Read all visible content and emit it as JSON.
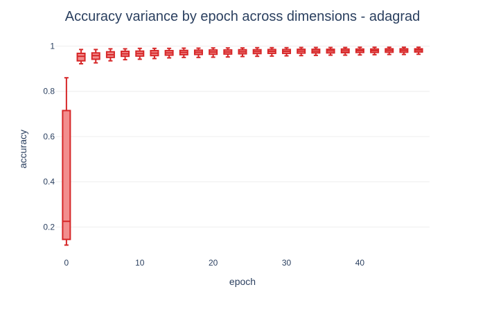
{
  "chart_data": {
    "type": "box",
    "title": "Accuracy variance by epoch across dimensions - adagrad",
    "xlabel": "epoch",
    "ylabel": "accuracy",
    "xlim": [
      -1.5,
      49.5
    ],
    "ylim": [
      0.1,
      1.02
    ],
    "x_ticks": [
      0,
      10,
      20,
      30,
      40
    ],
    "y_ticks": [
      0.2,
      0.4,
      0.6,
      0.8,
      1
    ],
    "y_tick_labels": [
      "0.2",
      "0.4",
      "0.6",
      "0.8",
      "1"
    ],
    "grid": true,
    "legend": "none",
    "colors": {
      "box_fill": "#f28e8e",
      "box_line": "#d62728",
      "text": "#2a3f5f",
      "grid": "#eeeeee"
    },
    "boxes": [
      {
        "x": 0,
        "min": 0.12,
        "q1": 0.145,
        "median": 0.225,
        "q3": 0.715,
        "max": 0.86
      },
      {
        "x": 2,
        "min": 0.922,
        "q1": 0.935,
        "median": 0.955,
        "q3": 0.968,
        "max": 0.985
      },
      {
        "x": 4,
        "min": 0.926,
        "q1": 0.942,
        "median": 0.958,
        "q3": 0.97,
        "max": 0.985
      },
      {
        "x": 6,
        "min": 0.935,
        "q1": 0.95,
        "median": 0.962,
        "q3": 0.975,
        "max": 0.988
      },
      {
        "x": 8,
        "min": 0.94,
        "q1": 0.955,
        "median": 0.966,
        "q3": 0.977,
        "max": 0.988
      },
      {
        "x": 10,
        "min": 0.942,
        "q1": 0.956,
        "median": 0.967,
        "q3": 0.978,
        "max": 0.99
      },
      {
        "x": 12,
        "min": 0.945,
        "q1": 0.958,
        "median": 0.969,
        "q3": 0.98,
        "max": 0.99
      },
      {
        "x": 14,
        "min": 0.948,
        "q1": 0.96,
        "median": 0.97,
        "q3": 0.98,
        "max": 0.99
      },
      {
        "x": 16,
        "min": 0.95,
        "q1": 0.962,
        "median": 0.972,
        "q3": 0.981,
        "max": 0.991
      },
      {
        "x": 18,
        "min": 0.95,
        "q1": 0.963,
        "median": 0.973,
        "q3": 0.982,
        "max": 0.991
      },
      {
        "x": 20,
        "min": 0.951,
        "q1": 0.964,
        "median": 0.974,
        "q3": 0.983,
        "max": 0.992
      },
      {
        "x": 22,
        "min": 0.952,
        "q1": 0.965,
        "median": 0.974,
        "q3": 0.983,
        "max": 0.992
      },
      {
        "x": 24,
        "min": 0.954,
        "q1": 0.966,
        "median": 0.975,
        "q3": 0.984,
        "max": 0.992
      },
      {
        "x": 26,
        "min": 0.955,
        "q1": 0.967,
        "median": 0.976,
        "q3": 0.984,
        "max": 0.993
      },
      {
        "x": 28,
        "min": 0.956,
        "q1": 0.968,
        "median": 0.977,
        "q3": 0.985,
        "max": 0.993
      },
      {
        "x": 30,
        "min": 0.957,
        "q1": 0.968,
        "median": 0.977,
        "q3": 0.985,
        "max": 0.993
      },
      {
        "x": 32,
        "min": 0.958,
        "q1": 0.969,
        "median": 0.978,
        "q3": 0.986,
        "max": 0.994
      },
      {
        "x": 34,
        "min": 0.959,
        "q1": 0.97,
        "median": 0.978,
        "q3": 0.986,
        "max": 0.994
      },
      {
        "x": 36,
        "min": 0.96,
        "q1": 0.97,
        "median": 0.979,
        "q3": 0.986,
        "max": 0.994
      },
      {
        "x": 38,
        "min": 0.96,
        "q1": 0.971,
        "median": 0.979,
        "q3": 0.987,
        "max": 0.994
      },
      {
        "x": 40,
        "min": 0.961,
        "q1": 0.972,
        "median": 0.98,
        "q3": 0.987,
        "max": 0.995
      },
      {
        "x": 42,
        "min": 0.962,
        "q1": 0.972,
        "median": 0.98,
        "q3": 0.987,
        "max": 0.995
      },
      {
        "x": 44,
        "min": 0.963,
        "q1": 0.973,
        "median": 0.981,
        "q3": 0.988,
        "max": 0.995
      },
      {
        "x": 46,
        "min": 0.963,
        "q1": 0.973,
        "median": 0.981,
        "q3": 0.988,
        "max": 0.995
      },
      {
        "x": 48,
        "min": 0.964,
        "q1": 0.974,
        "median": 0.982,
        "q3": 0.988,
        "max": 0.995
      }
    ]
  }
}
